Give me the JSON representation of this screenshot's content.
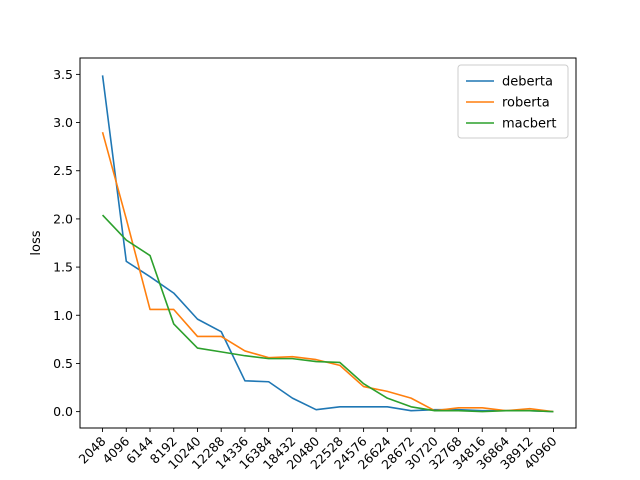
{
  "chart_data": {
    "type": "line",
    "title": "",
    "xlabel": "",
    "ylabel": "loss",
    "x": [
      2048,
      4096,
      6144,
      8192,
      10240,
      12288,
      14336,
      16384,
      18432,
      20480,
      22528,
      24576,
      26624,
      28672,
      30720,
      32768,
      34816,
      36864,
      38912,
      40960
    ],
    "x_tick_labels": [
      "2048",
      "4096",
      "6144",
      "8192",
      "10240",
      "12288",
      "14336",
      "16384",
      "18432",
      "20480",
      "22528",
      "24576",
      "26624",
      "28672",
      "30720",
      "32768",
      "34816",
      "36864",
      "38912",
      "40960"
    ],
    "yticks": [
      0.0,
      0.5,
      1.0,
      1.5,
      2.0,
      2.5,
      3.0,
      3.5
    ],
    "y_tick_labels": [
      "0.0",
      "0.5",
      "1.0",
      "1.5",
      "2.0",
      "2.5",
      "3.0",
      "3.5"
    ],
    "ylim": [
      -0.17,
      3.67
    ],
    "grid": false,
    "legend_position": "top-right",
    "series": [
      {
        "name": "deberta",
        "color": "#1f77b4",
        "values": [
          3.49,
          1.56,
          1.4,
          1.23,
          0.96,
          0.83,
          0.32,
          0.31,
          0.14,
          0.02,
          0.05,
          0.05,
          0.05,
          0.01,
          0.02,
          0.02,
          0.01,
          0.01,
          0.01,
          0.0
        ]
      },
      {
        "name": "roberta",
        "color": "#ff7f0e",
        "values": [
          2.9,
          2.0,
          1.06,
          1.06,
          0.78,
          0.78,
          0.63,
          0.56,
          0.57,
          0.54,
          0.48,
          0.26,
          0.21,
          0.14,
          0.01,
          0.04,
          0.04,
          0.01,
          0.03,
          0.0
        ]
      },
      {
        "name": "macbert",
        "color": "#2ca02c",
        "values": [
          2.04,
          1.78,
          1.62,
          0.91,
          0.66,
          0.62,
          0.58,
          0.55,
          0.55,
          0.52,
          0.51,
          0.29,
          0.14,
          0.05,
          0.01,
          0.01,
          0.0,
          0.01,
          0.01,
          0.0
        ]
      }
    ]
  }
}
